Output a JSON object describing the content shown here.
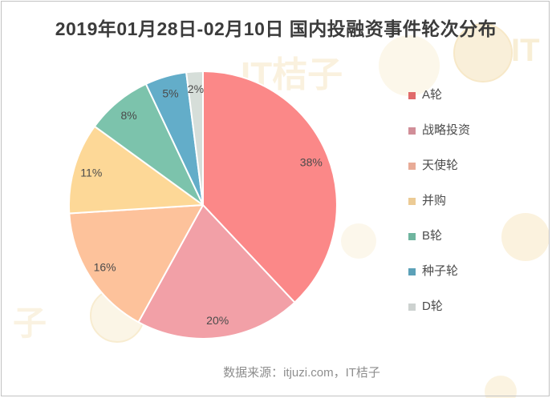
{
  "title": "2019年01月28日-02月10日 国内投融资事件轮次分布",
  "footer": {
    "data_source": "数据来源：itjuzi.com，IT桔子"
  },
  "watermark": {
    "text_full": "IT桔子",
    "text_it": "IT",
    "text_zi": "子",
    "color": "#f6e4ba"
  },
  "chart_data": {
    "type": "pie",
    "title": "2019年01月28日-02月10日 国内投融资事件轮次分布",
    "legend_position": "right",
    "start_angle_deg": 0,
    "direction": "clockwise",
    "label_format": "percent_inside",
    "stroke_color": "#ffffff",
    "slices": [
      {
        "label": "A轮",
        "slug": "a-round",
        "value_pct": 38,
        "color": "#fb8888",
        "legend_color": "#e06a6a"
      },
      {
        "label": "战略投资",
        "slug": "strategic-investment",
        "value_pct": 20,
        "color": "#f2a0a7",
        "legend_color": "#d18e98"
      },
      {
        "label": "天使轮",
        "slug": "angel-round",
        "value_pct": 16,
        "color": "#fdc29b",
        "legend_color": "#e8ab97"
      },
      {
        "label": "并购",
        "slug": "merger-acquisition",
        "value_pct": 11,
        "color": "#fdd897",
        "legend_color": "#eccb95"
      },
      {
        "label": "B轮",
        "slug": "b-round",
        "value_pct": 8,
        "color": "#7cc3ac",
        "legend_color": "#6fb59f"
      },
      {
        "label": "种子轮",
        "slug": "seed-round",
        "value_pct": 5,
        "color": "#63adc9",
        "legend_color": "#5ca1b8"
      },
      {
        "label": "D轮",
        "slug": "d-round",
        "value_pct": 2,
        "color": "#d6ded9",
        "legend_color": "#cdd2d0"
      }
    ]
  }
}
